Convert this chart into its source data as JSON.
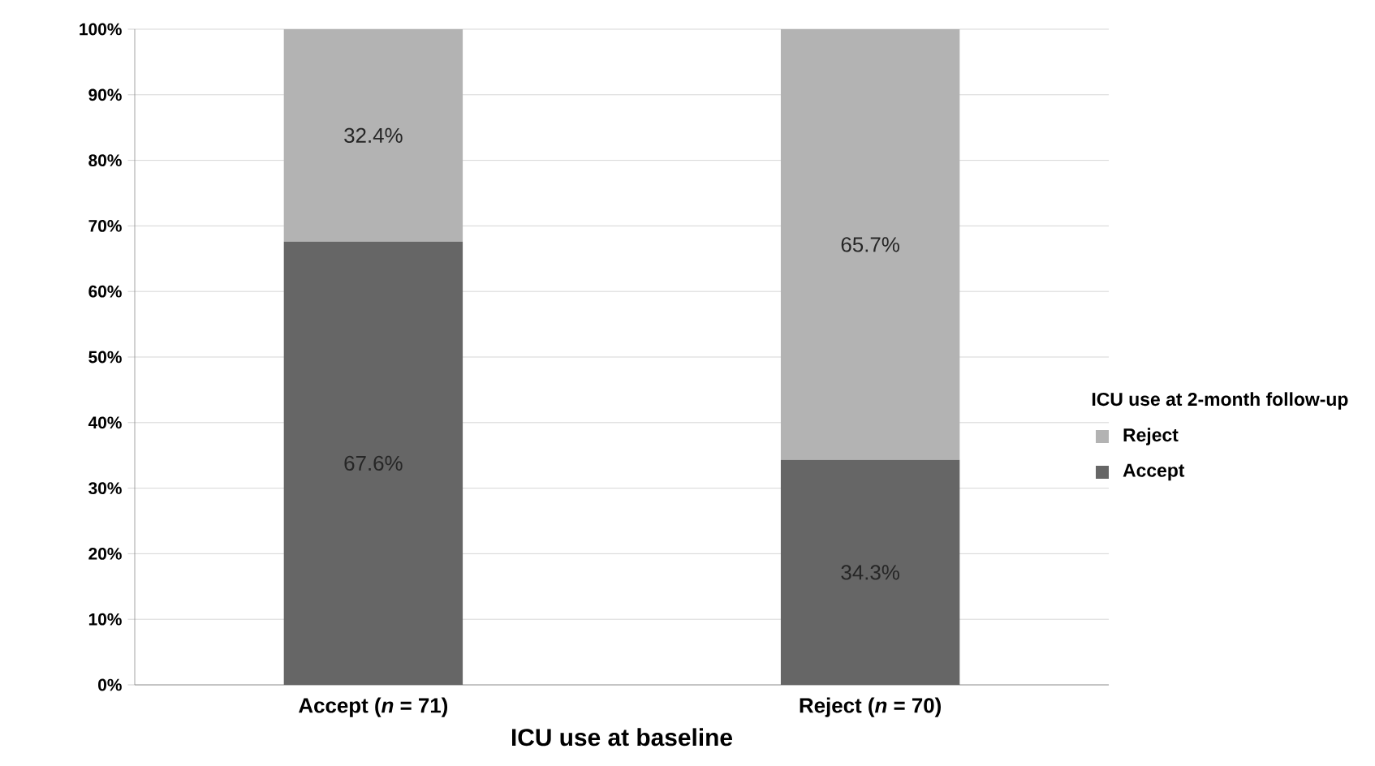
{
  "chart_data": {
    "type": "bar",
    "stacked": true,
    "xlabel": "ICU use at baseline",
    "legend_title": "ICU use at 2-month follow-up",
    "legend": "right",
    "categories": [
      "Accept (*n* = 71)",
      "Reject (*n* = 70)"
    ],
    "series": [
      {
        "name": "Accept",
        "color": "#666666",
        "values": [
          67.6,
          34.3
        ],
        "value_labels": [
          "67.6%",
          "34.3%"
        ]
      },
      {
        "name": "Reject",
        "color": "#b3b3b3",
        "values": [
          32.4,
          65.7
        ],
        "value_labels": [
          "32.4%",
          "65.7%"
        ]
      }
    ],
    "ylim": [
      0,
      100
    ],
    "yticks": [
      {
        "value": 0,
        "label": "0%"
      },
      {
        "value": 10,
        "label": "10%"
      },
      {
        "value": 20,
        "label": "20%"
      },
      {
        "value": 30,
        "label": "30%"
      },
      {
        "value": 40,
        "label": "40%"
      },
      {
        "value": 50,
        "label": "50%"
      },
      {
        "value": 60,
        "label": "60%"
      },
      {
        "value": 70,
        "label": "70%"
      },
      {
        "value": 80,
        "label": "80%"
      },
      {
        "value": 90,
        "label": "90%"
      },
      {
        "value": 100,
        "label": "100%"
      }
    ],
    "grid": "y"
  }
}
